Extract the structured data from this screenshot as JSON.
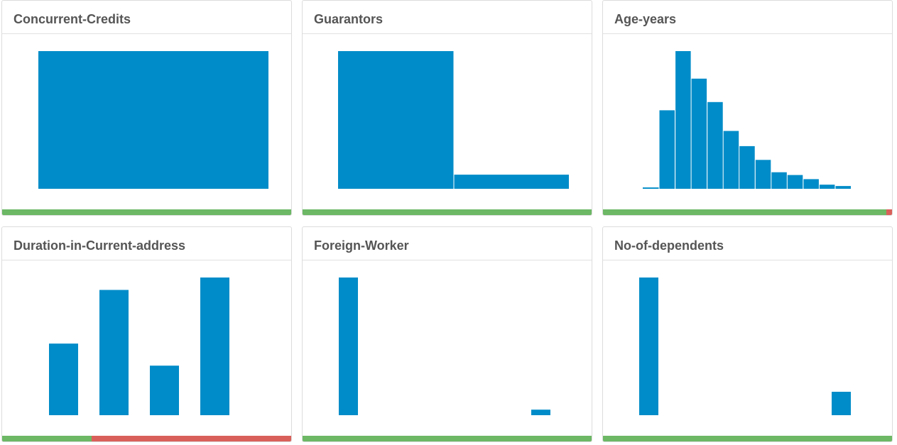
{
  "colors": {
    "bar": "#008cc8",
    "good": "#6cb865",
    "bad": "#d9605a"
  },
  "panels": [
    {
      "title": "Concurrent-Credits",
      "chart_data": {
        "type": "bar",
        "categories": [
          "1"
        ],
        "values": [
          1000
        ]
      },
      "quality": {
        "good": 1.0,
        "bad": 0.0
      }
    },
    {
      "title": "Guarantors",
      "chart_data": {
        "type": "bar",
        "categories": [
          "1",
          "2"
        ],
        "values": [
          907,
          93
        ]
      },
      "quality": {
        "good": 1.0,
        "bad": 0.0
      }
    },
    {
      "title": "Age-years",
      "chart_data": {
        "type": "bar",
        "categories": [
          "1",
          "2",
          "3",
          "4",
          "5",
          "6",
          "7",
          "8",
          "9",
          "10",
          "11",
          "12",
          "13"
        ],
        "values": [
          1,
          57,
          100,
          80,
          63,
          42,
          31,
          21,
          12,
          10,
          7,
          3,
          2
        ]
      },
      "quality": {
        "good": 0.98,
        "bad": 0.02
      }
    },
    {
      "title": "Duration-in-Current-address",
      "chart_data": {
        "type": "bar",
        "categories": [
          "1",
          "2",
          "3",
          "4"
        ],
        "values": [
          52,
          91,
          36,
          100
        ]
      },
      "quality": {
        "good": 0.31,
        "bad": 0.69
      }
    },
    {
      "title": "Foreign-Worker",
      "chart_data": {
        "type": "bar",
        "categories": [
          "1",
          "2"
        ],
        "values": [
          100,
          4
        ]
      },
      "quality": {
        "good": 1.0,
        "bad": 0.0
      }
    },
    {
      "title": "No-of-dependents",
      "chart_data": {
        "type": "bar",
        "categories": [
          "1",
          "2"
        ],
        "values": [
          100,
          17
        ]
      },
      "quality": {
        "good": 1.0,
        "bad": 0.0
      }
    }
  ]
}
